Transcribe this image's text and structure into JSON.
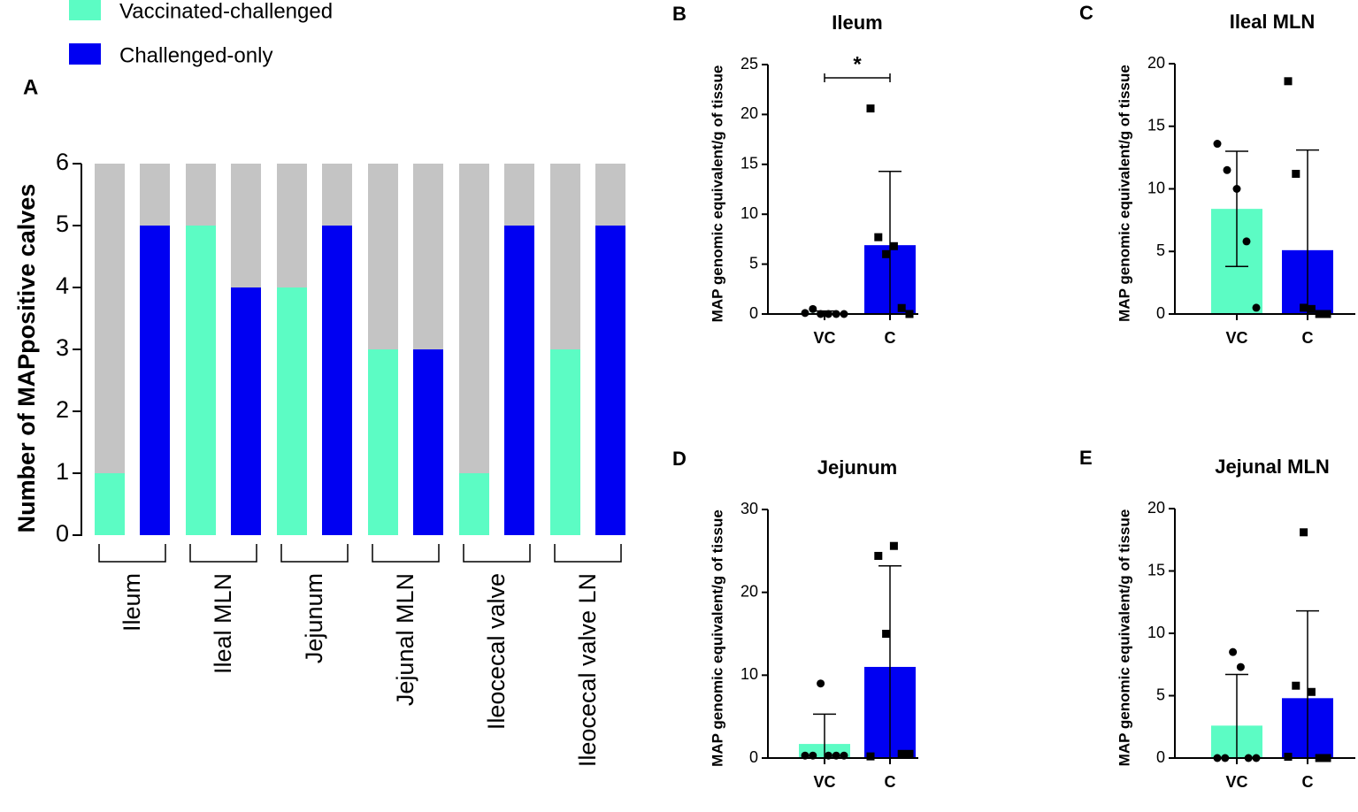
{
  "chart_data": [
    {
      "type": "bar",
      "label": "A",
      "ylabel": "Number of MAPpositive calves",
      "categories": [
        "Ileum",
        "Ileal MLN",
        "Jejunum",
        "Jejunal MLN",
        "Ileocecal valve",
        "Ileocecal valve LN"
      ],
      "series": [
        {
          "name": "Vaccinated-challenged",
          "color": "#5cfcc4",
          "values": [
            1,
            5,
            4,
            3,
            1,
            3
          ]
        },
        {
          "name": "Challenged-only",
          "color": "#0000f2",
          "values": [
            5,
            4,
            5,
            3,
            5,
            5
          ]
        }
      ],
      "background_color": "#c4c4c4",
      "ylim": [
        0,
        6
      ],
      "yticks": [
        0,
        1,
        2,
        3,
        4,
        5,
        6
      ]
    },
    {
      "type": "bar_error",
      "label": "B",
      "title": "Ileum",
      "ylabel": "MAP genomic equivalent/g of tissue",
      "categories": [
        "VC",
        "C"
      ],
      "colors": [
        "#5cfcc4",
        "#0000f2"
      ],
      "values": [
        0.1,
        6.9
      ],
      "errors": [
        0.2,
        7.4
      ],
      "points": [
        [
          0.1,
          0.5,
          0.0,
          0.0,
          0.0,
          0.0
        ],
        [
          20.6,
          7.7,
          6.0,
          6.8,
          0.6,
          0.0
        ]
      ],
      "annotation": "*",
      "ylim": [
        0,
        25
      ],
      "yticks": [
        0,
        5,
        10,
        15,
        20,
        25
      ]
    },
    {
      "type": "bar_error",
      "label": "C",
      "title": "Ileal MLN",
      "ylabel": "MAP genomic equivalent/g of tissue",
      "categories": [
        "VC",
        "C"
      ],
      "colors": [
        "#5cfcc4",
        "#0000f2"
      ],
      "values": [
        8.4,
        5.1
      ],
      "errors": [
        4.6,
        8.0
      ],
      "points": [
        [
          13.6,
          11.5,
          10.0,
          5.8,
          0.5
        ],
        [
          18.6,
          11.2,
          0.5,
          0.4,
          0.0,
          0.0
        ]
      ],
      "ylim": [
        0,
        20
      ],
      "yticks": [
        0,
        5,
        10,
        15,
        20
      ]
    },
    {
      "type": "bar_error",
      "label": "D",
      "title": "Jejunum",
      "ylabel": "MAP genomic equivalent/g of tissue",
      "categories": [
        "VC",
        "C"
      ],
      "colors": [
        "#5cfcc4",
        "#0000f2"
      ],
      "values": [
        1.7,
        11.0
      ],
      "errors": [
        3.6,
        12.2
      ],
      "points": [
        [
          0.3,
          0.3,
          9.0,
          0.3,
          0.3,
          0.3
        ],
        [
          0.2,
          24.4,
          15.0,
          25.6,
          0.5,
          0.5
        ]
      ],
      "ylim": [
        0,
        30
      ],
      "yticks": [
        0,
        10,
        20,
        30
      ]
    },
    {
      "type": "bar_error",
      "label": "E",
      "title": "Jejunal MLN",
      "ylabel": "MAP genomic equivalent/g of tissue",
      "categories": [
        "VC",
        "C"
      ],
      "colors": [
        "#5cfcc4",
        "#0000f2"
      ],
      "values": [
        2.6,
        4.8
      ],
      "errors": [
        4.1,
        7.0
      ],
      "points": [
        [
          0.0,
          0.0,
          8.5,
          7.3,
          0.0,
          0.0
        ],
        [
          0.1,
          5.8,
          18.1,
          5.3,
          0.0,
          0.0
        ]
      ],
      "ylim": [
        0,
        20
      ],
      "yticks": [
        0,
        5,
        10,
        15,
        20
      ]
    }
  ]
}
